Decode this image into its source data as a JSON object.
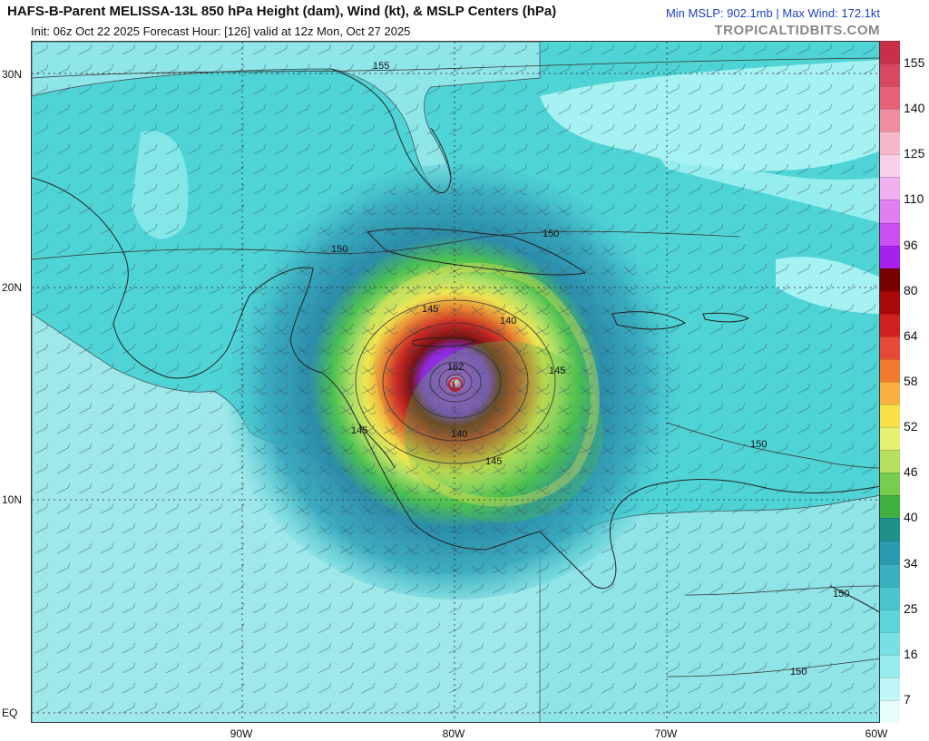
{
  "header": {
    "title": "HAFS-B-Parent MELISSA-13L 850 hPa Height (dam), Wind (kt), & MSLP Centers (hPa)",
    "subtitle": "Init: 06z Oct 22 2025   Forecast Hour: [126]   valid at 12z Mon, Oct 27 2025",
    "stats": "Min MSLP: 902.1mb | Max Wind: 172.1kt",
    "credit": "TROPICALTIDBITS.COM"
  },
  "map": {
    "lat_labels": [
      "30N",
      "20N",
      "10N",
      "EQ"
    ],
    "lon_labels": [
      "90W",
      "80W",
      "70W",
      "60W"
    ],
    "contour_labels": [
      "155",
      "150",
      "150",
      "150",
      "150",
      "150",
      "145",
      "145",
      "145",
      "145",
      "140",
      "140",
      "162"
    ],
    "low_marker": "L",
    "colors": {
      "ocean_base": "#4fd4d6",
      "light_wind": "#9ef0f0",
      "teal": "#2fa7b8",
      "green": "#4cc04a",
      "yellow": "#f5e64a",
      "orange": "#f08a2c",
      "red": "#d0201c",
      "dark_red": "#7a0808",
      "purple": "#a020f0",
      "low_center": "#cc1111"
    }
  },
  "colorbar": {
    "labels": [
      "155",
      "140",
      "125",
      "110",
      "96",
      "80",
      "64",
      "58",
      "52",
      "46",
      "40",
      "34",
      "25",
      "16",
      "7"
    ],
    "colors": [
      "#c8304a",
      "#d84860",
      "#e86078",
      "#f08ca0",
      "#f8b8c8",
      "#f8d0e8",
      "#f0b0f0",
      "#e080f0",
      "#c850f0",
      "#a820f0",
      "#7a0000",
      "#a80808",
      "#d02020",
      "#e84838",
      "#f07a30",
      "#f8b040",
      "#f8e048",
      "#e8f070",
      "#b8e060",
      "#78cc50",
      "#40b040",
      "#20908a",
      "#2a9aae",
      "#38b0c0",
      "#48c4cc",
      "#5cd4d8",
      "#78e0e4",
      "#98ecee",
      "#c0f6f6",
      "#e8fcfc"
    ]
  }
}
